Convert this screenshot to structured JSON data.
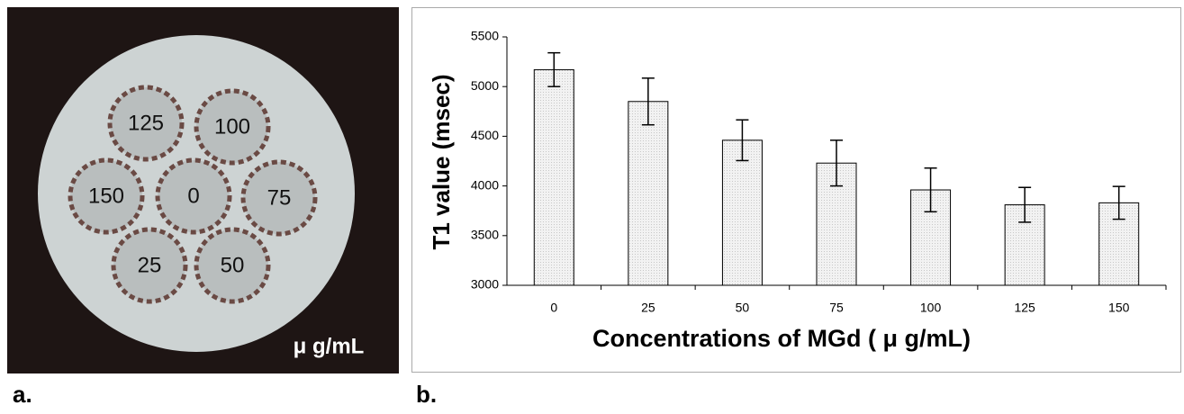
{
  "panel_a": {
    "label": "a.",
    "unit": "μ g/mL",
    "wells": [
      "125",
      "100",
      "150",
      "0",
      "75",
      "25",
      "50"
    ]
  },
  "chart_data": {
    "type": "bar",
    "panel_label": "b.",
    "x_label": "Concentrations of MGd ( μ g/mL)",
    "y_label": "T1 value (msec)",
    "categories": [
      "0",
      "25",
      "50",
      "75",
      "100",
      "125",
      "150"
    ],
    "values": [
      5170,
      4850,
      4460,
      4230,
      3960,
      3810,
      3830
    ],
    "errors": [
      170,
      235,
      205,
      230,
      220,
      175,
      165
    ],
    "color": "#ececec",
    "ylim": [
      3000,
      5500
    ],
    "yticks": [
      3000,
      3500,
      4000,
      4500,
      5000,
      5500
    ]
  }
}
